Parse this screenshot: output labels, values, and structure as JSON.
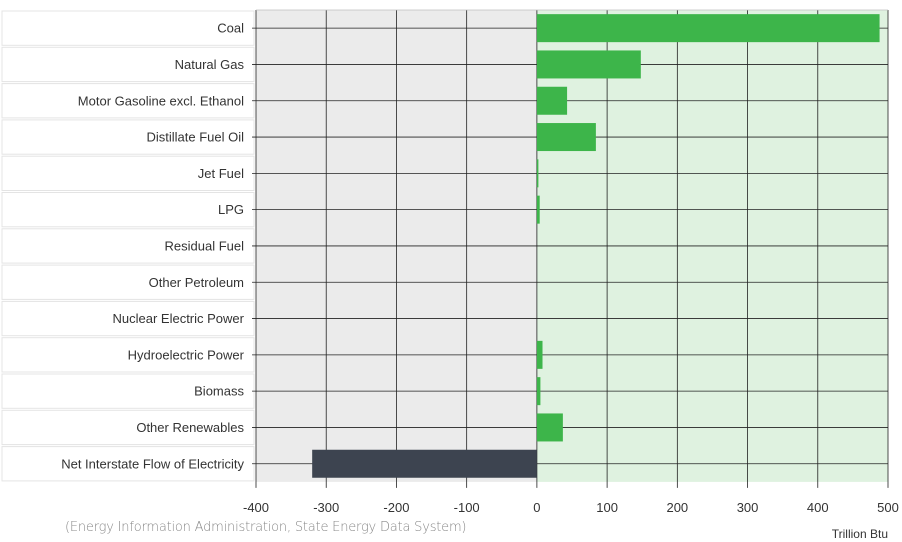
{
  "chart_data": {
    "type": "bar",
    "orientation": "horizontal",
    "categories": [
      "Coal",
      "Natural Gas",
      "Motor Gasoline excl. Ethanol",
      "Distillate Fuel Oil",
      "Jet Fuel",
      "LPG",
      "Residual Fuel",
      "Other Petroleum",
      "Nuclear Electric Power",
      "Hydroelectric Power",
      "Biomass",
      "Other Renewables",
      "Net Interstate Flow of Electricity"
    ],
    "values": [
      488,
      148,
      43,
      84,
      2,
      4,
      0,
      0,
      0,
      8,
      5,
      37,
      -320
    ],
    "xlim": [
      -400,
      500
    ],
    "xticks": [
      -400,
      -300,
      -200,
      -100,
      0,
      100,
      200,
      300,
      400,
      500
    ],
    "xlabel": "Trillion Btu",
    "grid": true,
    "colors": {
      "positive": "#3db54a",
      "negative": "#3d4450",
      "positive_region": "#dff2e0",
      "negative_region": "#ebebeb",
      "grid": "#222222"
    }
  },
  "footer": {
    "source": "(Energy Information Administration, State Energy Data System)"
  }
}
